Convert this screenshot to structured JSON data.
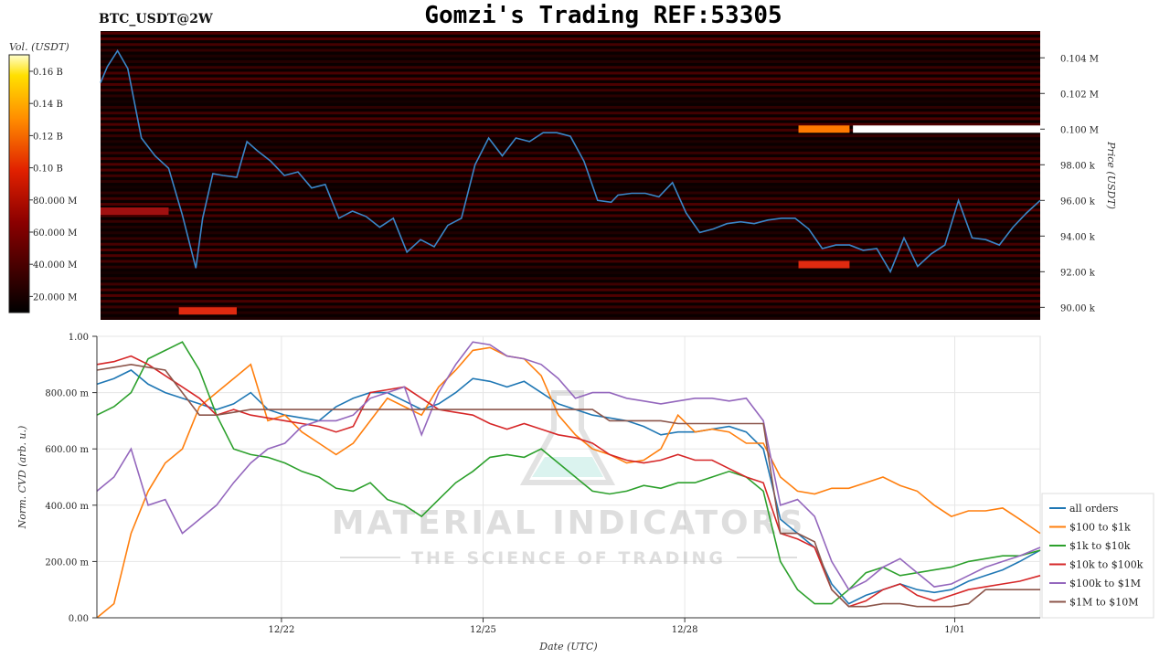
{
  "header": {
    "title": "Gomzi's Trading REF:53305",
    "symbol": "BTC_USDT@2W"
  },
  "watermark": {
    "line1": "MATERIAL INDICATORS",
    "line2": "THE SCIENCE OF TRADING"
  },
  "colors": {
    "heatmap_bg": "#0a0000",
    "price_line": "#3a86c8",
    "grid": "#e6e6e6"
  },
  "chart_data": [
    {
      "type": "heatmap",
      "title": "",
      "ylabel": "Price (USDT)",
      "colorbar_label": "Vol. (USDT)",
      "colorbar_ticks": [
        "0.16 B",
        "0.14 B",
        "0.12 B",
        "0.10 B",
        "80.000 M",
        "60.000 M",
        "40.000 M",
        "20.000 M"
      ],
      "y_ticks": [
        "0.104 M",
        "0.102 M",
        "0.100 M",
        "98.00 k",
        "96.00 k",
        "94.00 k",
        "92.00 k",
        "90.00 k"
      ],
      "ylim": [
        89300,
        105500
      ],
      "price_series": {
        "name": "",
        "x_days": [
          0,
          0.2,
          0.5,
          0.8,
          1.2,
          1.6,
          2.0,
          2.4,
          2.8,
          3.0,
          3.3,
          3.6,
          4.0,
          4.3,
          4.6,
          5.0,
          5.4,
          5.8,
          6.2,
          6.6,
          7.0,
          7.4,
          7.8,
          8.2,
          8.6,
          9.0,
          9.4,
          9.8,
          10.2,
          10.6,
          11.0,
          11.4,
          11.8,
          12.2,
          12.6,
          13.0,
          13.4,
          13.8,
          14.2,
          14.6,
          15.0,
          15.2,
          15.6,
          16.0,
          16.4,
          16.8,
          17.2,
          17.6,
          18.0,
          18.4,
          18.8,
          19.2,
          19.6,
          20.0,
          20.4,
          20.8,
          21.2,
          21.6,
          22.0,
          22.4,
          22.8,
          23.2,
          23.6,
          24.0,
          24.4,
          24.8,
          25.2,
          25.6,
          26.0,
          26.4,
          26.8,
          27.2,
          27.6
        ],
        "values": [
          102600,
          103500,
          104400,
          103400,
          99500,
          98500,
          97800,
          95200,
          92200,
          95000,
          97500,
          97400,
          97300,
          99300,
          98800,
          98200,
          97400,
          97600,
          96700,
          96900,
          95000,
          95400,
          95100,
          94500,
          95000,
          93100,
          93800,
          93400,
          94600,
          95000,
          98000,
          99500,
          98500,
          99500,
          99300,
          99800,
          99800,
          99600,
          98200,
          96000,
          95900,
          96300,
          96400,
          96400,
          96200,
          97000,
          95300,
          94200,
          94400,
          94700,
          94800,
          94700,
          94900,
          95000,
          95000,
          94400,
          93300,
          93500,
          93500,
          93200,
          93300,
          92000,
          93900,
          92300,
          93000,
          93500,
          96000,
          93900,
          93800,
          93500,
          94500,
          95300,
          96000
        ]
      },
      "hot_bands": [
        {
          "price": 100000,
          "x_start_day": 20.5,
          "x_end_day": 22.0,
          "level": "orange"
        },
        {
          "price": 100000,
          "x_start_day": 22.1,
          "x_end_day": 27.6,
          "level": "white"
        },
        {
          "price": 92400,
          "x_start_day": 20.5,
          "x_end_day": 22.0,
          "level": "red"
        },
        {
          "price": 89800,
          "x_start_day": 2.3,
          "x_end_day": 4.0,
          "level": "red"
        },
        {
          "price": 95400,
          "x_start_day": 0,
          "x_end_day": 2.0,
          "level": "dark-red"
        }
      ]
    },
    {
      "type": "line",
      "title": "",
      "xlabel": "Date (UTC)",
      "ylabel": "Norm. CVD (arb. u.)",
      "ylim": [
        0,
        1
      ],
      "y_ticks": [
        {
          "value": 0.0,
          "label": "0.00"
        },
        {
          "value": 0.2,
          "label": "200.00 m"
        },
        {
          "value": 0.4,
          "label": "400.00 m"
        },
        {
          "value": 0.6,
          "label": "600.00 m"
        },
        {
          "value": 0.8,
          "label": "800.00 m"
        },
        {
          "value": 1.0,
          "label": "1.00"
        }
      ],
      "x_ticks": [
        {
          "label": "12/22",
          "day": 5.4
        },
        {
          "label": "12/25",
          "day": 11.3
        },
        {
          "label": "12/28",
          "day": 17.2
        },
        {
          "label": "1/01",
          "day": 25.1
        }
      ],
      "x_range_days": [
        0,
        27.6
      ],
      "x": [
        0,
        0.5,
        1.0,
        1.5,
        2.0,
        2.5,
        3.0,
        3.5,
        4.0,
        4.5,
        5.0,
        5.5,
        6.0,
        6.5,
        7.0,
        7.5,
        8.0,
        8.5,
        9.0,
        9.5,
        10.0,
        10.5,
        11.0,
        11.5,
        12.0,
        12.5,
        13.0,
        13.5,
        14.0,
        14.5,
        15.0,
        15.5,
        16.0,
        16.5,
        17.0,
        17.5,
        18.0,
        18.5,
        19.0,
        19.5,
        20.0,
        20.5,
        21.0,
        21.5,
        22.0,
        22.5,
        23.0,
        23.5,
        24.0,
        24.5,
        25.0,
        25.5,
        26.0,
        26.5,
        27.0,
        27.6
      ],
      "series": [
        {
          "name": "all orders",
          "color": "#1f77b4",
          "values": [
            0.83,
            0.85,
            0.88,
            0.83,
            0.8,
            0.78,
            0.76,
            0.74,
            0.76,
            0.8,
            0.74,
            0.72,
            0.71,
            0.7,
            0.75,
            0.78,
            0.8,
            0.8,
            0.77,
            0.74,
            0.76,
            0.8,
            0.85,
            0.84,
            0.82,
            0.84,
            0.8,
            0.76,
            0.74,
            0.72,
            0.71,
            0.7,
            0.68,
            0.65,
            0.66,
            0.66,
            0.67,
            0.68,
            0.66,
            0.6,
            0.35,
            0.3,
            0.25,
            0.12,
            0.05,
            0.08,
            0.1,
            0.12,
            0.1,
            0.09,
            0.1,
            0.13,
            0.15,
            0.17,
            0.2,
            0.24
          ]
        },
        {
          "name": "$100 to $1k",
          "color": "#ff7f0e",
          "values": [
            0.0,
            0.05,
            0.3,
            0.45,
            0.55,
            0.6,
            0.75,
            0.8,
            0.85,
            0.9,
            0.7,
            0.72,
            0.66,
            0.62,
            0.58,
            0.62,
            0.7,
            0.78,
            0.75,
            0.72,
            0.82,
            0.88,
            0.95,
            0.96,
            0.93,
            0.92,
            0.86,
            0.72,
            0.65,
            0.6,
            0.58,
            0.55,
            0.56,
            0.6,
            0.72,
            0.66,
            0.67,
            0.66,
            0.62,
            0.62,
            0.5,
            0.45,
            0.44,
            0.46,
            0.46,
            0.48,
            0.5,
            0.47,
            0.45,
            0.4,
            0.36,
            0.38,
            0.38,
            0.39,
            0.35,
            0.3
          ]
        },
        {
          "name": "$1k to $10k",
          "color": "#2ca02c",
          "values": [
            0.72,
            0.75,
            0.8,
            0.92,
            0.95,
            0.98,
            0.88,
            0.72,
            0.6,
            0.58,
            0.57,
            0.55,
            0.52,
            0.5,
            0.46,
            0.45,
            0.48,
            0.42,
            0.4,
            0.36,
            0.42,
            0.48,
            0.52,
            0.57,
            0.58,
            0.57,
            0.6,
            0.55,
            0.5,
            0.45,
            0.44,
            0.45,
            0.47,
            0.46,
            0.48,
            0.48,
            0.5,
            0.52,
            0.5,
            0.45,
            0.2,
            0.1,
            0.05,
            0.05,
            0.1,
            0.16,
            0.18,
            0.15,
            0.16,
            0.17,
            0.18,
            0.2,
            0.21,
            0.22,
            0.22,
            0.24
          ]
        },
        {
          "name": "$10k to $100k",
          "color": "#d62728",
          "values": [
            0.9,
            0.91,
            0.93,
            0.9,
            0.86,
            0.82,
            0.78,
            0.72,
            0.74,
            0.72,
            0.71,
            0.7,
            0.69,
            0.68,
            0.66,
            0.68,
            0.8,
            0.81,
            0.82,
            0.78,
            0.74,
            0.73,
            0.72,
            0.69,
            0.67,
            0.69,
            0.67,
            0.65,
            0.64,
            0.62,
            0.58,
            0.56,
            0.55,
            0.56,
            0.58,
            0.56,
            0.56,
            0.53,
            0.5,
            0.48,
            0.3,
            0.28,
            0.25,
            0.1,
            0.04,
            0.06,
            0.1,
            0.12,
            0.08,
            0.06,
            0.08,
            0.1,
            0.11,
            0.12,
            0.13,
            0.15
          ]
        },
        {
          "name": "$100k to $1M",
          "color": "#9467bd",
          "values": [
            0.45,
            0.5,
            0.6,
            0.4,
            0.42,
            0.3,
            0.35,
            0.4,
            0.48,
            0.55,
            0.6,
            0.62,
            0.68,
            0.7,
            0.7,
            0.72,
            0.78,
            0.8,
            0.82,
            0.65,
            0.8,
            0.9,
            0.98,
            0.97,
            0.93,
            0.92,
            0.9,
            0.85,
            0.78,
            0.8,
            0.8,
            0.78,
            0.77,
            0.76,
            0.77,
            0.78,
            0.78,
            0.77,
            0.78,
            0.7,
            0.4,
            0.42,
            0.36,
            0.2,
            0.1,
            0.13,
            0.18,
            0.21,
            0.16,
            0.11,
            0.12,
            0.15,
            0.18,
            0.2,
            0.22,
            0.25
          ]
        },
        {
          "name": "$1M to $10M",
          "color": "#8c564b",
          "values": [
            0.88,
            0.89,
            0.9,
            0.89,
            0.88,
            0.8,
            0.72,
            0.72,
            0.73,
            0.74,
            0.74,
            0.74,
            0.74,
            0.74,
            0.74,
            0.74,
            0.74,
            0.74,
            0.74,
            0.74,
            0.74,
            0.74,
            0.74,
            0.74,
            0.74,
            0.74,
            0.74,
            0.74,
            0.74,
            0.74,
            0.7,
            0.7,
            0.7,
            0.7,
            0.69,
            0.69,
            0.69,
            0.69,
            0.69,
            0.69,
            0.3,
            0.3,
            0.27,
            0.1,
            0.04,
            0.04,
            0.05,
            0.05,
            0.04,
            0.04,
            0.04,
            0.05,
            0.1,
            0.1,
            0.1,
            0.1
          ]
        }
      ],
      "legend_position": "lower-right"
    }
  ]
}
